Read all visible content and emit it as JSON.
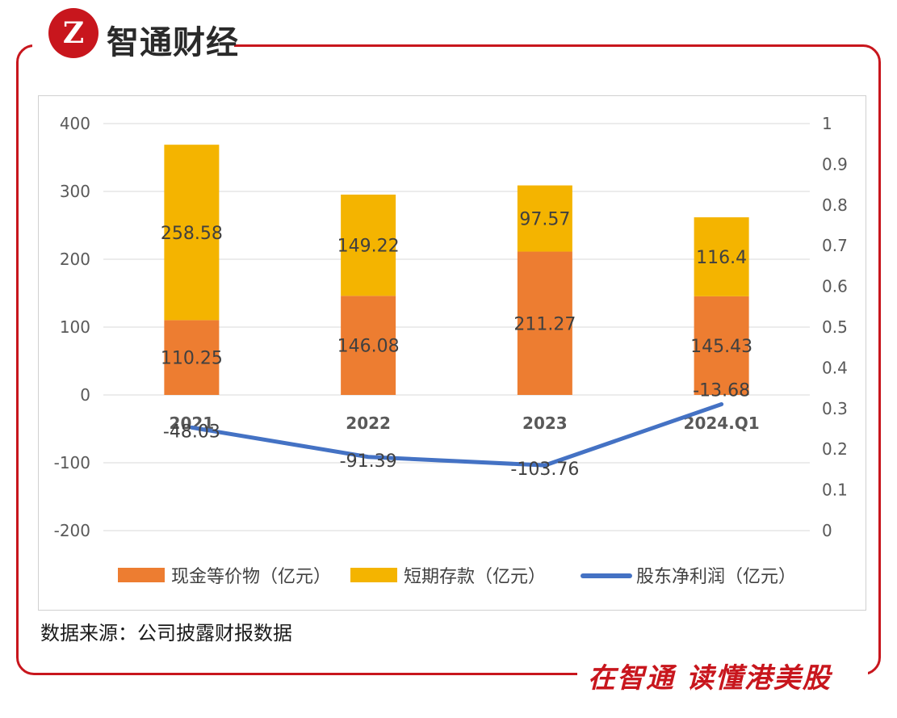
{
  "brand": {
    "logo_mark": "Z",
    "name": "智通财经",
    "slogan": "在智通 读懂港美股",
    "color": "#c8161d"
  },
  "chart_data": {
    "type": "bar",
    "stacked": true,
    "categories": [
      "2021",
      "2022",
      "2023",
      "2024.Q1"
    ],
    "series": [
      {
        "name": "现金等价物（亿元）",
        "type": "bar",
        "color": "#ed7d31",
        "values": [
          110.25,
          146.08,
          211.27,
          145.43
        ]
      },
      {
        "name": "短期存款（亿元）",
        "type": "bar",
        "color": "#f4b400",
        "values": [
          258.58,
          149.22,
          97.57,
          116.4
        ]
      },
      {
        "name": "股东净利润（亿元）",
        "type": "line",
        "color": "#4472c4",
        "values": [
          -48.03,
          -91.39,
          -103.76,
          -13.68
        ]
      }
    ],
    "y_left": {
      "min": -200,
      "max": 400,
      "ticks": [
        400,
        300,
        200,
        100,
        0,
        -100,
        -200
      ]
    },
    "y_right": {
      "min": 0,
      "max": 1,
      "ticks": [
        "1",
        "0.9",
        "0.8",
        "0.7",
        "0.6",
        "0.5",
        "0.4",
        "0.3",
        "0.2",
        "0.1",
        "0"
      ]
    },
    "legend_position": "bottom",
    "grid": true
  },
  "source_note": "数据来源：公司披露财报数据"
}
